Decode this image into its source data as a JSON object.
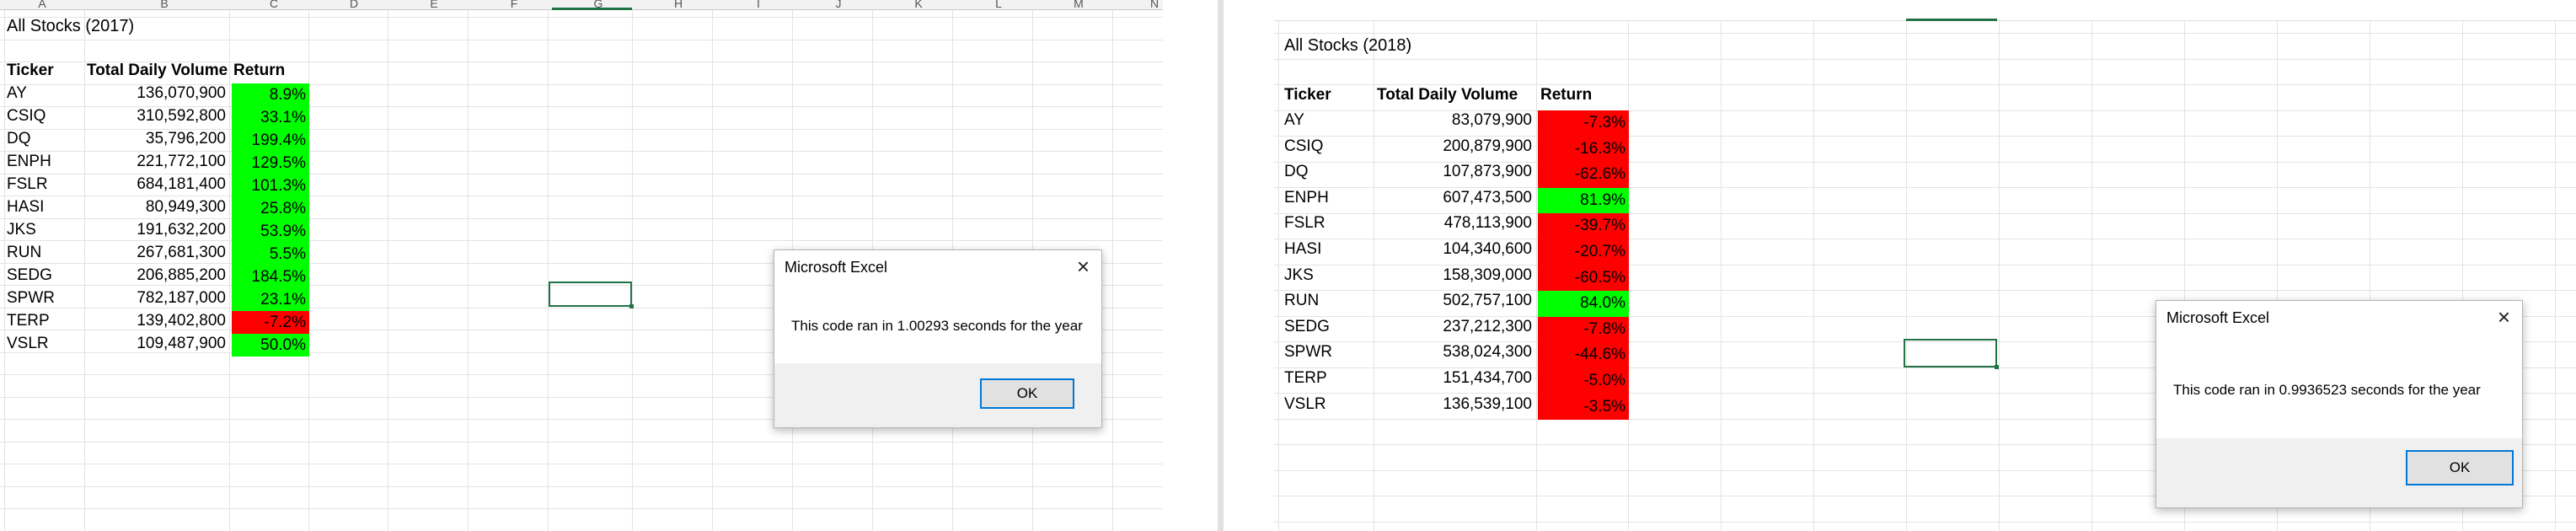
{
  "colors": {
    "positive": "#00ff00",
    "negative": "#ff0000",
    "selection": "#217346",
    "dialog_button_border": "#0078d7"
  },
  "icons": {
    "dialog_close": "close-icon"
  },
  "left": {
    "column_letters": [
      "A",
      "B",
      "C",
      "D",
      "E",
      "F",
      "G",
      "H",
      "I",
      "J",
      "K",
      "L",
      "M",
      "N"
    ],
    "title": "All Stocks (2017)",
    "headers": {
      "ticker": "Ticker",
      "volume": "Total Daily Volume",
      "return": "Return"
    },
    "rows": [
      {
        "ticker": "AY",
        "volume": "136,070,900",
        "return": "8.9%",
        "sign": "pos"
      },
      {
        "ticker": "CSIQ",
        "volume": "310,592,800",
        "return": "33.1%",
        "sign": "pos"
      },
      {
        "ticker": "DQ",
        "volume": "35,796,200",
        "return": "199.4%",
        "sign": "pos"
      },
      {
        "ticker": "ENPH",
        "volume": "221,772,100",
        "return": "129.5%",
        "sign": "pos"
      },
      {
        "ticker": "FSLR",
        "volume": "684,181,400",
        "return": "101.3%",
        "sign": "pos"
      },
      {
        "ticker": "HASI",
        "volume": "80,949,300",
        "return": "25.8%",
        "sign": "pos"
      },
      {
        "ticker": "JKS",
        "volume": "191,632,200",
        "return": "53.9%",
        "sign": "pos"
      },
      {
        "ticker": "RUN",
        "volume": "267,681,300",
        "return": "5.5%",
        "sign": "pos"
      },
      {
        "ticker": "SEDG",
        "volume": "206,885,200",
        "return": "184.5%",
        "sign": "pos"
      },
      {
        "ticker": "SPWR",
        "volume": "782,187,000",
        "return": "23.1%",
        "sign": "pos"
      },
      {
        "ticker": "TERP",
        "volume": "139,402,800",
        "return": "-7.2%",
        "sign": "neg"
      },
      {
        "ticker": "VSLR",
        "volume": "109,487,900",
        "return": "50.0%",
        "sign": "pos"
      }
    ],
    "dialog": {
      "title": "Microsoft Excel",
      "message": "This code ran in 1.00293 seconds for the year",
      "ok_label": "OK"
    }
  },
  "right": {
    "title": "All Stocks (2018)",
    "headers": {
      "ticker": "Ticker",
      "volume": "Total Daily Volume",
      "return": "Return"
    },
    "rows": [
      {
        "ticker": "AY",
        "volume": "83,079,900",
        "return": "-7.3%",
        "sign": "neg"
      },
      {
        "ticker": "CSIQ",
        "volume": "200,879,900",
        "return": "-16.3%",
        "sign": "neg"
      },
      {
        "ticker": "DQ",
        "volume": "107,873,900",
        "return": "-62.6%",
        "sign": "neg"
      },
      {
        "ticker": "ENPH",
        "volume": "607,473,500",
        "return": "81.9%",
        "sign": "pos"
      },
      {
        "ticker": "FSLR",
        "volume": "478,113,900",
        "return": "-39.7%",
        "sign": "neg"
      },
      {
        "ticker": "HASI",
        "volume": "104,340,600",
        "return": "-20.7%",
        "sign": "neg"
      },
      {
        "ticker": "JKS",
        "volume": "158,309,000",
        "return": "-60.5%",
        "sign": "neg"
      },
      {
        "ticker": "RUN",
        "volume": "502,757,100",
        "return": "84.0%",
        "sign": "pos"
      },
      {
        "ticker": "SEDG",
        "volume": "237,212,300",
        "return": "-7.8%",
        "sign": "neg"
      },
      {
        "ticker": "SPWR",
        "volume": "538,024,300",
        "return": "-44.6%",
        "sign": "neg"
      },
      {
        "ticker": "TERP",
        "volume": "151,434,700",
        "return": "-5.0%",
        "sign": "neg"
      },
      {
        "ticker": "VSLR",
        "volume": "136,539,100",
        "return": "-3.5%",
        "sign": "neg"
      }
    ],
    "dialog": {
      "title": "Microsoft Excel",
      "message": "This code ran in 0.9936523 seconds for the year",
      "ok_label": "OK"
    }
  }
}
